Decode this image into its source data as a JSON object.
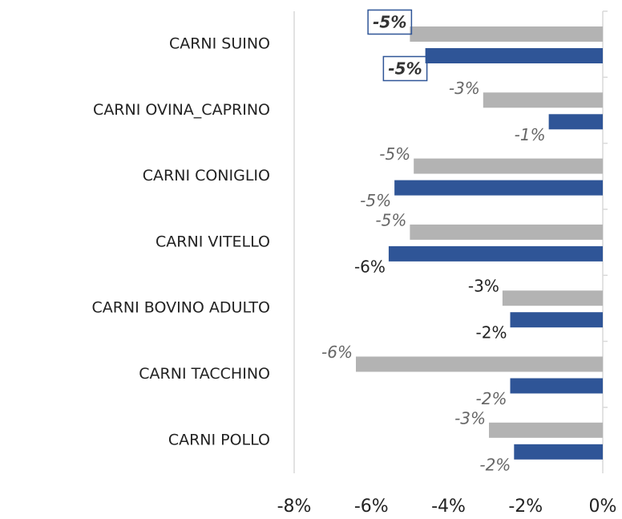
{
  "chart_data": {
    "type": "bar",
    "orientation": "horizontal",
    "categories": [
      "CARNI  SUINO",
      "CARNI OVINA_CAPRINO",
      "CARNI  CONIGLIO",
      "CARNI VITELLO",
      "CARNI BOVINO ADULTO",
      "CARNI TACCHINO",
      "CARNI  POLLO"
    ],
    "series": [
      {
        "color": "#b3b3b3",
        "values": [
          -5.0,
          -3.1,
          -4.9,
          -5.0,
          -2.6,
          -6.4,
          -2.95
        ],
        "value_labels": [
          "-5%",
          "-3%",
          "-5%",
          "-5%",
          "-3%",
          "-6%",
          "-3%"
        ]
      },
      {
        "color": "#2f5597",
        "values": [
          -4.6,
          -1.4,
          -5.4,
          -5.55,
          -2.4,
          -2.4,
          -2.3
        ],
        "value_labels": [
          "-5%",
          "-1%",
          "-5%",
          "-6%",
          "-2%",
          "-2%",
          "-2%"
        ]
      }
    ],
    "xlim": [
      -8,
      0
    ],
    "xticks": [
      {
        "value": -8,
        "label": "-8%"
      },
      {
        "value": -6,
        "label": "-6%"
      },
      {
        "value": -4,
        "label": "-4%"
      },
      {
        "value": -2,
        "label": "-2%"
      },
      {
        "value": 0,
        "label": "0%"
      }
    ],
    "grid": false
  }
}
